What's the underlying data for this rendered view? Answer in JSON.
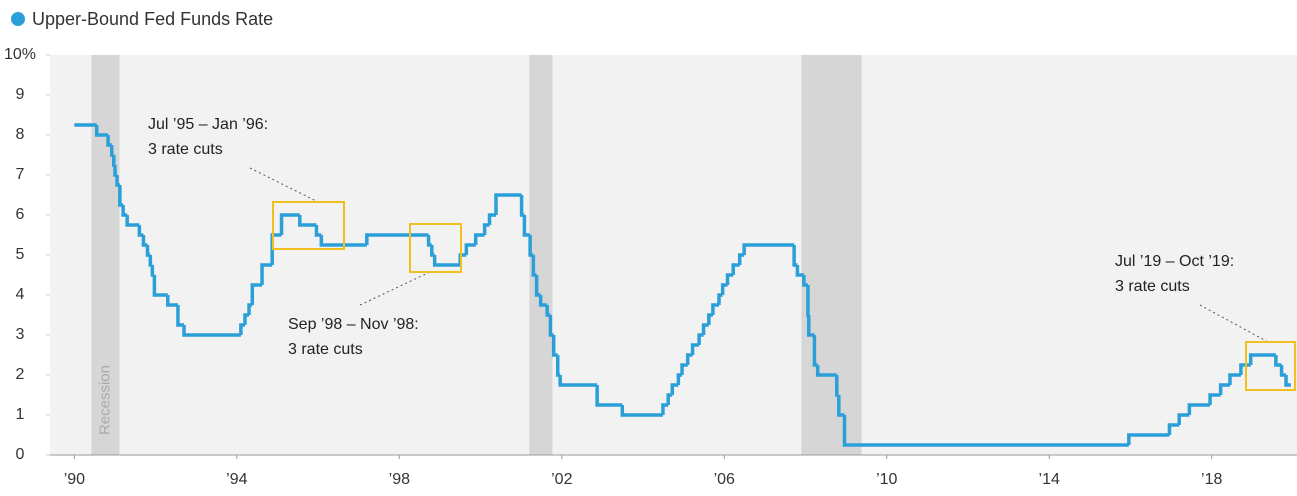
{
  "chart_data": {
    "type": "line",
    "legend": "Upper-Bound Fed Funds Rate",
    "recession_label": "Recession",
    "series": [
      {
        "name": "Upper-Bound Fed Funds Rate",
        "color": "#2a9fd8",
        "step": true,
        "x": [
          1990.0,
          1990.55,
          1990.83,
          1990.92,
          1990.97,
          1991.0,
          1991.05,
          1991.12,
          1991.2,
          1991.3,
          1991.6,
          1991.7,
          1991.8,
          1991.87,
          1991.92,
          1991.97,
          1992.3,
          1992.55,
          1992.7,
          1994.1,
          1994.2,
          1994.3,
          1994.38,
          1994.62,
          1994.87,
          1995.1,
          1995.55,
          1995.96,
          1996.08,
          1997.2,
          1998.72,
          1998.8,
          1998.87,
          1999.5,
          1999.65,
          1999.88,
          2000.1,
          2000.22,
          2000.38,
          2001.01,
          2001.08,
          2001.22,
          2001.3,
          2001.38,
          2001.48,
          2001.64,
          2001.72,
          2001.8,
          2001.9,
          2001.96,
          2002.87,
          2003.49,
          2004.49,
          2004.62,
          2004.72,
          2004.87,
          2004.96,
          2005.1,
          2005.22,
          2005.38,
          2005.49,
          2005.62,
          2005.72,
          2005.87,
          2005.96,
          2006.08,
          2006.22,
          2006.38,
          2006.49,
          2007.72,
          2007.8,
          2007.96,
          2008.06,
          2008.08,
          2008.22,
          2008.3,
          2008.77,
          2008.82,
          2008.96,
          2015.96,
          2016.96,
          2017.2,
          2017.45,
          2017.96,
          2018.22,
          2018.45,
          2018.72,
          2018.96,
          2019.58,
          2019.72,
          2019.83,
          2019.95
        ],
        "values": [
          8.25,
          8.0,
          7.75,
          7.5,
          7.25,
          7.0,
          6.75,
          6.25,
          6.0,
          5.75,
          5.5,
          5.25,
          5.0,
          4.75,
          4.5,
          4.0,
          3.75,
          3.25,
          3.0,
          3.25,
          3.5,
          3.75,
          4.25,
          4.75,
          5.5,
          6.0,
          5.75,
          5.5,
          5.25,
          5.5,
          5.25,
          5.0,
          4.75,
          5.0,
          5.25,
          5.5,
          5.75,
          6.0,
          6.5,
          6.0,
          5.5,
          5.0,
          4.5,
          4.0,
          3.75,
          3.5,
          3.0,
          2.5,
          2.0,
          1.75,
          1.25,
          1.0,
          1.25,
          1.5,
          1.75,
          2.0,
          2.25,
          2.5,
          2.75,
          3.0,
          3.25,
          3.5,
          3.75,
          4.0,
          4.25,
          4.5,
          4.75,
          5.0,
          5.25,
          4.75,
          4.5,
          4.25,
          3.5,
          3.0,
          2.25,
          2.0,
          1.5,
          1.0,
          0.25,
          0.5,
          0.75,
          1.0,
          1.25,
          1.5,
          1.75,
          2.0,
          2.25,
          2.5,
          2.25,
          2.0,
          1.75,
          1.75
        ]
      }
    ],
    "recessions": [
      {
        "start": 1990.42,
        "end": 1991.11
      },
      {
        "start": 2001.2,
        "end": 2001.77
      },
      {
        "start": 2007.9,
        "end": 2009.38
      }
    ],
    "annotations": [
      {
        "lines": [
          "Jul ’95 – Jan ’96:",
          "3 rate cuts"
        ]
      },
      {
        "lines": [
          "Sep ’98 – Nov ’98:",
          "3 rate cuts"
        ]
      },
      {
        "lines": [
          "Jul ’19 – Oct ’19:",
          "3 rate cuts"
        ]
      }
    ],
    "xlim": [
      1989.4,
      2020.1
    ],
    "xticks": [
      {
        "value": 1990,
        "label": "’90"
      },
      {
        "value": 1994,
        "label": "’94"
      },
      {
        "value": 1998,
        "label": "’98"
      },
      {
        "value": 2002,
        "label": "’02"
      },
      {
        "value": 2006,
        "label": "’06"
      },
      {
        "value": 2010,
        "label": "’10"
      },
      {
        "value": 2014,
        "label": "’14"
      },
      {
        "value": 2018,
        "label": "’18"
      }
    ],
    "ylim": [
      0,
      10
    ],
    "yticks": [
      0,
      1,
      2,
      3,
      4,
      5,
      6,
      7,
      8,
      9,
      {
        "value": 10,
        "label": "10%"
      }
    ]
  }
}
